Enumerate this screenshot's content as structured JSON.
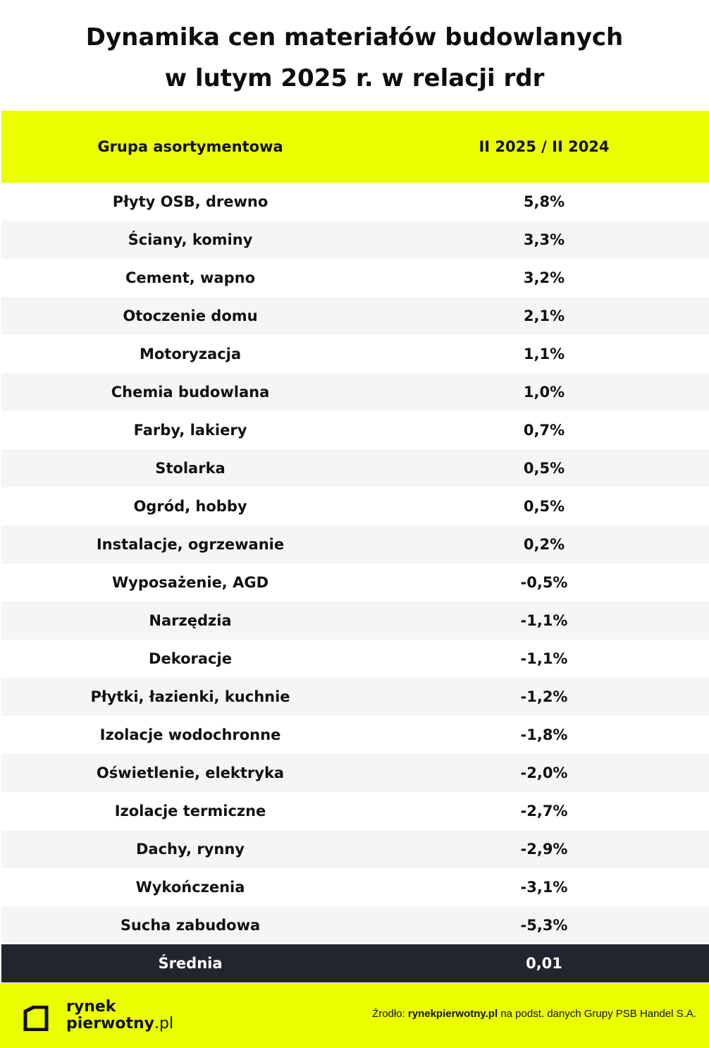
{
  "title_line1": "Dynamika cen materiałów budowlanych",
  "title_line2": "w lutym 2025 r. w relacji rdr",
  "chart_data": {
    "type": "table",
    "columns": [
      "Grupa asortymentowa",
      "II 2025 / II 2024"
    ],
    "rows": [
      {
        "name": "Płyty OSB, drewno",
        "value": "5,8%"
      },
      {
        "name": "Ściany, kominy",
        "value": "3,3%"
      },
      {
        "name": "Cement, wapno",
        "value": "3,2%"
      },
      {
        "name": "Otoczenie domu",
        "value": "2,1%"
      },
      {
        "name": "Motoryzacja",
        "value": "1,1%"
      },
      {
        "name": "Chemia budowlana",
        "value": "1,0%"
      },
      {
        "name": "Farby, lakiery",
        "value": "0,7%"
      },
      {
        "name": "Stolarka",
        "value": "0,5%"
      },
      {
        "name": "Ogród, hobby",
        "value": "0,5%"
      },
      {
        "name": "Instalacje, ogrzewanie",
        "value": "0,2%"
      },
      {
        "name": "Wyposażenie, AGD",
        "value": "-0,5%"
      },
      {
        "name": "Narzędzia",
        "value": "-1,1%"
      },
      {
        "name": "Dekoracje",
        "value": "-1,1%"
      },
      {
        "name": "Płytki, łazienki, kuchnie",
        "value": "-1,2%"
      },
      {
        "name": "Izolacje wodochronne",
        "value": "-1,8%"
      },
      {
        "name": "Oświetlenie, elektryka",
        "value": "-2,0%"
      },
      {
        "name": "Izolacje termiczne",
        "value": "-2,7%"
      },
      {
        "name": "Dachy, rynny",
        "value": "-2,9%"
      },
      {
        "name": "Wykończenia",
        "value": "-3,1%"
      },
      {
        "name": "Sucha zabudowa",
        "value": "-5,3%"
      }
    ],
    "average": {
      "name": "Średnia",
      "value": "0,01"
    }
  },
  "footer": {
    "logo_line1": "rynek",
    "logo_line2_bold": "pierwotny",
    "logo_line2_suffix": ".pl",
    "source_prefix": "Źrodło: ",
    "source_bold": "rynekpierwotny.pl",
    "source_suffix": " na podst. danych Grupy PSB Handel S.A."
  },
  "colors": {
    "accent": "#eaff00",
    "dark_row": "#23252e",
    "alt_row": "#f5f5f5"
  }
}
